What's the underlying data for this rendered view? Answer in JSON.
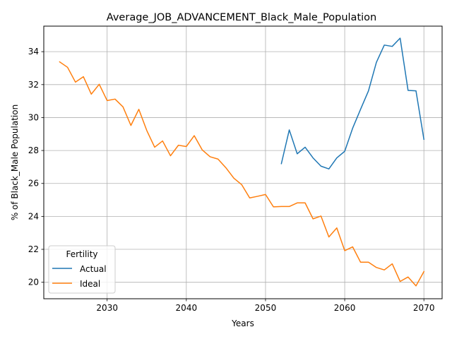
{
  "chart_data": {
    "type": "line",
    "title": "Average_JOB_ADVANCEMENT_Black_Male_Population",
    "xlabel": "Years",
    "ylabel": "% of Black_Male Population",
    "xlim": [
      2022,
      2072.3
    ],
    "ylim": [
      19.0,
      35.55
    ],
    "xticks": [
      2030,
      2040,
      2050,
      2060,
      2070
    ],
    "yticks": [
      20,
      22,
      24,
      26,
      28,
      30,
      32,
      34
    ],
    "grid": true,
    "legend": {
      "title": "Fertility",
      "position": "lower-left"
    },
    "series": [
      {
        "name": "Actual",
        "color": "#1f77b4",
        "x": [
          2052,
          2053,
          2054,
          2055,
          2056,
          2057,
          2058,
          2059,
          2060,
          2061,
          2062,
          2063,
          2064,
          2065,
          2066,
          2067,
          2068,
          2069,
          2070
        ],
        "y": [
          27.2,
          29.25,
          27.8,
          28.2,
          27.55,
          27.05,
          26.88,
          27.55,
          27.95,
          29.35,
          30.5,
          31.62,
          33.35,
          34.4,
          34.32,
          34.82,
          31.65,
          31.62,
          28.68
        ]
      },
      {
        "name": "Ideal",
        "color": "#ff7f0e",
        "x": [
          2024,
          2025,
          2026,
          2027,
          2028,
          2029,
          2030,
          2031,
          2032,
          2033,
          2034,
          2035,
          2036,
          2037,
          2038,
          2039,
          2040,
          2041,
          2042,
          2043,
          2044,
          2045,
          2046,
          2047,
          2048,
          2049,
          2050,
          2051,
          2052,
          2053,
          2054,
          2055,
          2056,
          2057,
          2058,
          2059,
          2060,
          2061,
          2062,
          2063,
          2064,
          2065,
          2066,
          2067,
          2068,
          2069,
          2070
        ],
        "y": [
          33.38,
          33.05,
          32.15,
          32.48,
          31.42,
          32.02,
          31.03,
          31.12,
          30.65,
          29.52,
          30.5,
          29.22,
          28.2,
          28.58,
          27.68,
          28.32,
          28.24,
          28.9,
          28.04,
          27.62,
          27.48,
          26.95,
          26.32,
          25.92,
          25.12,
          25.22,
          25.33,
          24.58,
          24.6,
          24.6,
          24.82,
          24.82,
          23.85,
          24.02,
          22.75,
          23.3,
          21.92,
          22.15,
          21.22,
          21.22,
          20.9,
          20.75,
          21.12,
          20.05,
          20.32,
          19.78,
          20.65
        ]
      }
    ]
  }
}
